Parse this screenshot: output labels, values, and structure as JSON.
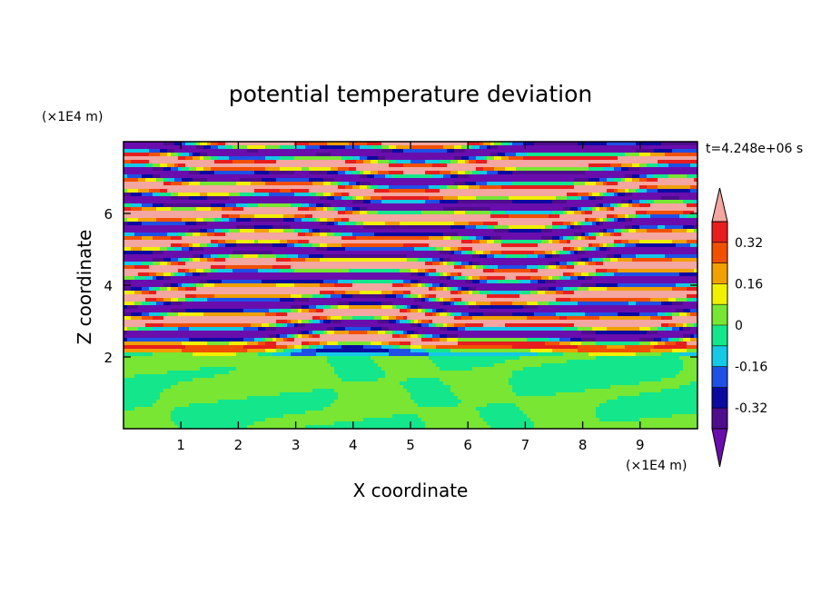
{
  "chart_data": {
    "type": "heatmap",
    "title": "potential temperature deviation",
    "xlabel": "X coordinate",
    "ylabel": "Z coordinate",
    "x_unit": "(×1E4 m)",
    "y_unit": "(×1E4 m)",
    "time_label": "t=4.248e+06 s",
    "xlim": [
      0,
      10
    ],
    "ylim": [
      0,
      8
    ],
    "x_ticks": [
      "1",
      "2",
      "3",
      "4",
      "5",
      "6",
      "7",
      "8",
      "9"
    ],
    "y_ticks": [
      "2",
      "4",
      "6"
    ],
    "colorbar": {
      "levels": [
        -0.4,
        -0.32,
        -0.24,
        -0.16,
        -0.08,
        0,
        0.08,
        0.16,
        0.24,
        0.32,
        0.4
      ],
      "colors": [
        "#4d0d8c",
        "#0a0aa0",
        "#1e50e6",
        "#14c8e6",
        "#14e68c",
        "#78e632",
        "#f0f000",
        "#f0a000",
        "#f05000",
        "#e61e1e"
      ],
      "under_color": "#6a0dad",
      "over_color": "#f4a6a0",
      "tick_labels": [
        "0.32",
        "0.16",
        "0",
        "-0.16",
        "-0.32"
      ],
      "tick_values": [
        0.32,
        0.16,
        0,
        -0.16,
        -0.32
      ]
    }
  }
}
